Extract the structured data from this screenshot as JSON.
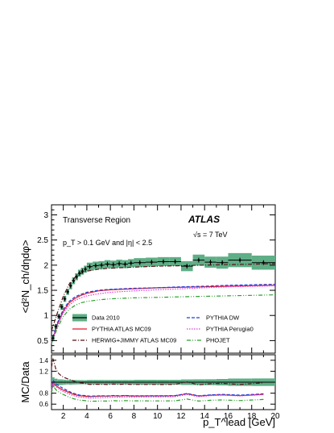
{
  "chart_data": {
    "type": "line",
    "main": {
      "ylabel": "<d²N_ch/dηdφ>",
      "ylim": [
        0.25,
        3.2
      ],
      "yticks": [
        0.5,
        1,
        1.5,
        2,
        2.5,
        3
      ],
      "region_label": "Transverse Region",
      "experiment_label": "ATLAS",
      "energy_label": "√s = 7 TeV",
      "cuts_label": "p_T > 0.1 GeV and |η| < 2.5"
    },
    "ratio": {
      "ylabel": "MC/Data",
      "ylim": [
        0.5,
        1.5
      ],
      "yticks": [
        0.6,
        0.8,
        1,
        1.2,
        1.4
      ]
    },
    "x": {
      "label": "p_T^lead [GeV]",
      "xlim": [
        1,
        20
      ],
      "xticks": [
        2,
        4,
        6,
        8,
        10,
        12,
        14,
        16,
        18,
        20
      ]
    },
    "data": {
      "name": "Data 2010",
      "color": "#000000",
      "band_color": "#5fae86",
      "x": [
        1.125,
        1.375,
        1.625,
        1.875,
        2.125,
        2.375,
        2.625,
        2.875,
        3.125,
        3.375,
        3.625,
        3.875,
        4.25,
        4.75,
        5.25,
        5.75,
        6.25,
        6.75,
        7.25,
        7.75,
        8.5,
        9.5,
        10.5,
        11.5,
        12.5,
        13.5,
        14.5,
        15.5,
        17.0,
        19.0
      ],
      "y": [
        0.55,
        0.78,
        0.98,
        1.17,
        1.33,
        1.47,
        1.59,
        1.69,
        1.77,
        1.84,
        1.88,
        1.92,
        1.97,
        1.99,
        2.0,
        2.02,
        2.01,
        2.03,
        2.02,
        2.04,
        2.05,
        2.06,
        2.07,
        2.07,
        1.98,
        2.1,
        2.06,
        2.05,
        2.1,
        2.05
      ],
      "xerr": [
        0.125,
        0.125,
        0.125,
        0.125,
        0.125,
        0.125,
        0.125,
        0.125,
        0.125,
        0.125,
        0.125,
        0.125,
        0.25,
        0.25,
        0.25,
        0.25,
        0.25,
        0.25,
        0.25,
        0.25,
        0.5,
        0.5,
        0.5,
        0.5,
        0.5,
        0.5,
        0.5,
        0.5,
        1.0,
        1.0
      ],
      "band": [
        0.05,
        0.05,
        0.05,
        0.06,
        0.06,
        0.06,
        0.07,
        0.07,
        0.07,
        0.07,
        0.07,
        0.07,
        0.08,
        0.08,
        0.08,
        0.08,
        0.08,
        0.08,
        0.08,
        0.08,
        0.09,
        0.09,
        0.09,
        0.09,
        0.1,
        0.11,
        0.11,
        0.12,
        0.14,
        0.14
      ]
    },
    "series": [
      {
        "name": "PYTHIA ATLAS MC09",
        "color": "#e8192c",
        "dash": "solid",
        "x": [
          1.0,
          1.5,
          2.0,
          2.5,
          3.0,
          3.5,
          4.0,
          5.0,
          6.0,
          8.0,
          10.0,
          12.0,
          14.0,
          16.0,
          18.0,
          20.0
        ],
        "y": [
          0.46,
          0.82,
          1.08,
          1.25,
          1.34,
          1.4,
          1.44,
          1.49,
          1.51,
          1.53,
          1.55,
          1.56,
          1.57,
          1.58,
          1.59,
          1.6
        ]
      },
      {
        "name": "PYTHIA DW",
        "color": "#1f3fd8",
        "dash": "dashed",
        "x": [
          1.0,
          1.5,
          2.0,
          2.5,
          3.0,
          3.5,
          4.0,
          5.0,
          6.0,
          8.0,
          10.0,
          12.0,
          14.0,
          16.0,
          18.0,
          20.0
        ],
        "y": [
          0.48,
          0.85,
          1.12,
          1.28,
          1.37,
          1.42,
          1.46,
          1.5,
          1.52,
          1.54,
          1.55,
          1.57,
          1.58,
          1.6,
          1.61,
          1.62
        ]
      },
      {
        "name": "HERWIG+JIMMY ATLAS MC09",
        "color": "#5a1218",
        "dash": "dashdot",
        "x": [
          1.0,
          1.5,
          2.0,
          2.5,
          3.0,
          3.5,
          4.0,
          5.0,
          6.0,
          8.0,
          10.0,
          12.0,
          14.0,
          16.0,
          18.0,
          20.0
        ],
        "y": [
          0.7,
          1.05,
          1.38,
          1.62,
          1.76,
          1.84,
          1.88,
          1.92,
          1.94,
          1.96,
          1.98,
          1.99,
          2.0,
          2.01,
          2.02,
          2.03
        ]
      },
      {
        "name": "PYTHIA Perugia0",
        "color": "#e03ce0",
        "dash": "dotted",
        "x": [
          1.0,
          1.5,
          2.0,
          2.5,
          3.0,
          3.5,
          4.0,
          5.0,
          6.0,
          8.0,
          10.0,
          12.0,
          14.0,
          16.0,
          18.0,
          20.0
        ],
        "y": [
          0.47,
          0.8,
          1.05,
          1.2,
          1.3,
          1.35,
          1.39,
          1.43,
          1.46,
          1.49,
          1.51,
          1.53,
          1.55,
          1.57,
          1.58,
          1.59
        ]
      },
      {
        "name": "PHOJET",
        "color": "#2e9e2e",
        "dash": "dashdotdot",
        "x": [
          1.0,
          1.5,
          2.0,
          2.5,
          3.0,
          3.5,
          4.0,
          5.0,
          6.0,
          8.0,
          10.0,
          12.0,
          14.0,
          16.0,
          18.0,
          20.0
        ],
        "y": [
          0.44,
          0.75,
          0.98,
          1.12,
          1.2,
          1.25,
          1.28,
          1.31,
          1.33,
          1.35,
          1.36,
          1.37,
          1.38,
          1.39,
          1.4,
          1.41
        ]
      }
    ],
    "legend": {
      "placement": "bottom",
      "left_column": [
        "Data 2010",
        "PYTHIA ATLAS MC09",
        "HERWIG+JIMMY ATLAS MC09"
      ],
      "right_column": [
        "PYTHIA DW",
        "PYTHIA Perugia0",
        "PHOJET"
      ]
    },
    "grid": false
  }
}
